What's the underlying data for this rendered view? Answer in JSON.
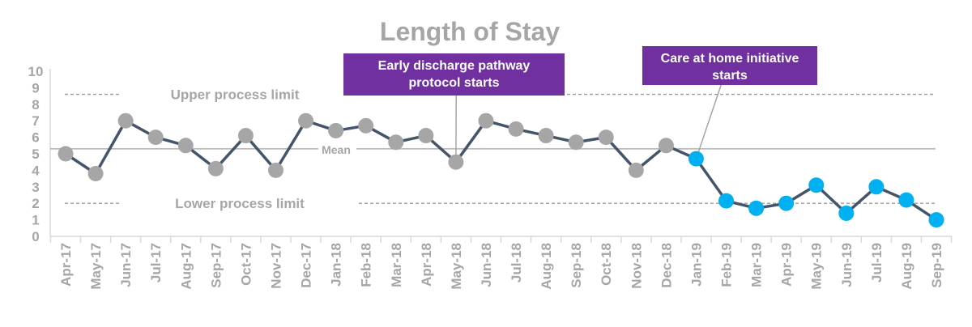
{
  "chart_data": {
    "type": "line",
    "title": "Length of Stay",
    "xlabel": "",
    "ylabel": "",
    "ylim": [
      0,
      10
    ],
    "yticks": [
      "0",
      "1",
      "2",
      "3",
      "4",
      "5",
      "6",
      "7",
      "8",
      "9",
      "10"
    ],
    "grid": false,
    "categories": [
      "Apr-17",
      "May-17",
      "Jun-17",
      "Jul-17",
      "Aug-17",
      "Sep-17",
      "Oct-17",
      "Nov-17",
      "Dec-17",
      "Jan-18",
      "Feb-18",
      "Mar-18",
      "Apr-18",
      "May-18",
      "Jun-18",
      "Jul-18",
      "Aug-18",
      "Sep-18",
      "Oct-18",
      "Nov-18",
      "Dec-18",
      "Jan-19",
      "Feb-19",
      "Mar-19",
      "Apr-19",
      "May-19",
      "Jun-19",
      "Jul-19",
      "Aug-19",
      "Sep-19"
    ],
    "values": [
      5.0,
      3.8,
      7.0,
      6.0,
      5.5,
      4.1,
      6.1,
      4.0,
      7.0,
      6.4,
      6.7,
      5.7,
      6.1,
      4.5,
      7.0,
      6.5,
      6.1,
      5.7,
      6.0,
      4.0,
      5.5,
      4.7,
      2.15,
      1.7,
      2.0,
      3.1,
      1.4,
      3.0,
      2.2,
      1.0
    ],
    "highlight_from": "Jan-19",
    "reference_lines": [
      {
        "label": "Upper process limit",
        "value": 8.6,
        "style": "dashed"
      },
      {
        "label": "Mean",
        "value": 5.3,
        "style": "solid"
      },
      {
        "label": "Lower process limit",
        "value": 2.0,
        "style": "dashed"
      }
    ],
    "annotations": [
      {
        "text": [
          "Early discharge pathway",
          "protocol starts"
        ],
        "at": "May-18"
      },
      {
        "text": [
          "Care at home initiative",
          "starts"
        ],
        "at": "Jan-19"
      }
    ],
    "colors": {
      "line": "#44546a",
      "point_before": "#a6a6a6",
      "point_after": "#00b0f0",
      "annotation_bg": "#7030a0",
      "axis_text": "#a6a6a6"
    }
  }
}
